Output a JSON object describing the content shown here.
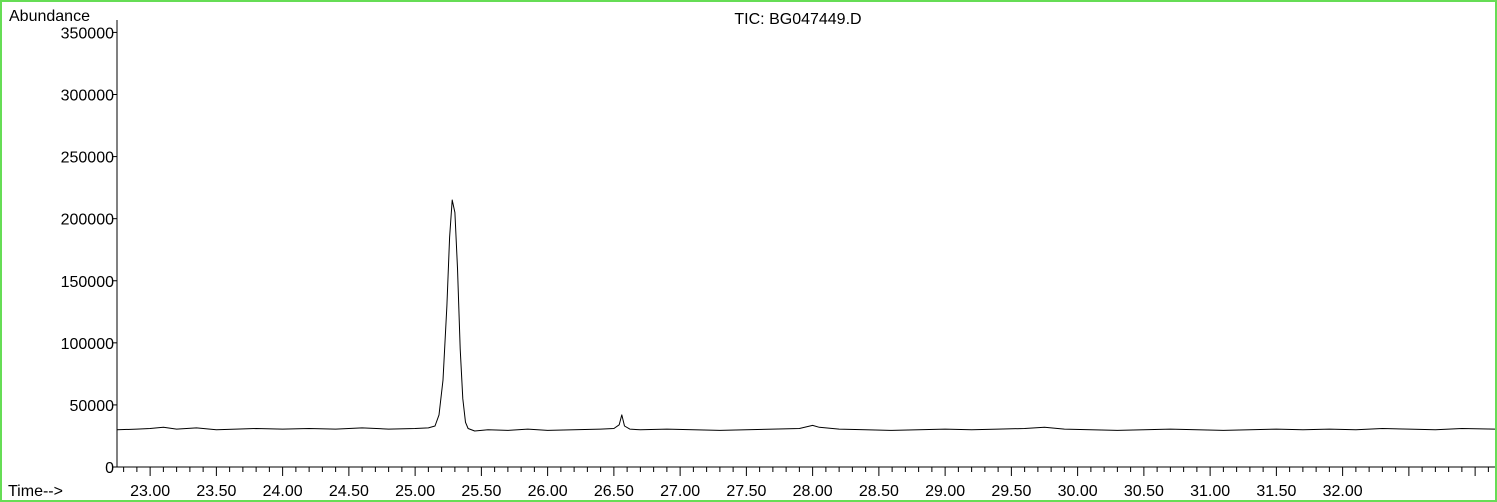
{
  "chart_data": {
    "type": "line",
    "title": "TIC: BG047449.D",
    "ylabel": "Abundance",
    "xlabel": "Time-->",
    "xlim": [
      22.75,
      33.15
    ],
    "ylim": [
      0,
      360000
    ],
    "grid": false,
    "yticks": [
      {
        "value": 0,
        "label": "0"
      },
      {
        "value": 50000,
        "label": "50000"
      },
      {
        "value": 100000,
        "label": "100000"
      },
      {
        "value": 150000,
        "label": "150000"
      },
      {
        "value": 200000,
        "label": "200000"
      },
      {
        "value": 250000,
        "label": "250000"
      },
      {
        "value": 300000,
        "label": "300000"
      },
      {
        "value": 350000,
        "label": "350000"
      }
    ],
    "xticks": [
      {
        "value": 23.0,
        "label": "23.00"
      },
      {
        "value": 23.5,
        "label": "23.50"
      },
      {
        "value": 24.0,
        "label": "24.00"
      },
      {
        "value": 24.5,
        "label": "24.50"
      },
      {
        "value": 25.0,
        "label": "25.00"
      },
      {
        "value": 25.5,
        "label": "25.50"
      },
      {
        "value": 26.0,
        "label": "26.00"
      },
      {
        "value": 26.5,
        "label": "26.50"
      },
      {
        "value": 27.0,
        "label": "27.00"
      },
      {
        "value": 27.5,
        "label": "27.50"
      },
      {
        "value": 28.0,
        "label": "28.00"
      },
      {
        "value": 28.5,
        "label": "28.50"
      },
      {
        "value": 29.0,
        "label": "29.00"
      },
      {
        "value": 29.5,
        "label": "29.50"
      },
      {
        "value": 30.0,
        "label": "30.00"
      },
      {
        "value": 30.5,
        "label": "30.50"
      },
      {
        "value": 31.0,
        "label": "31.00"
      },
      {
        "value": 31.5,
        "label": "31.50"
      },
      {
        "value": 32.0,
        "label": "32.00"
      }
    ],
    "minor_tick_step": 0.1,
    "series": [
      {
        "color": "#000000",
        "x": [
          22.75,
          22.9,
          23.0,
          23.1,
          23.2,
          23.35,
          23.5,
          23.65,
          23.8,
          24.0,
          24.2,
          24.4,
          24.6,
          24.8,
          25.0,
          25.1,
          25.15,
          25.18,
          25.21,
          25.24,
          25.26,
          25.28,
          25.3,
          25.32,
          25.34,
          25.36,
          25.38,
          25.4,
          25.45,
          25.55,
          25.7,
          25.85,
          26.0,
          26.2,
          26.4,
          26.5,
          26.54,
          26.56,
          26.58,
          26.62,
          26.7,
          26.9,
          27.1,
          27.3,
          27.5,
          27.7,
          27.9,
          28.0,
          28.05,
          28.2,
          28.4,
          28.6,
          28.8,
          29.0,
          29.2,
          29.4,
          29.6,
          29.75,
          29.9,
          30.1,
          30.3,
          30.5,
          30.7,
          30.9,
          31.1,
          31.3,
          31.5,
          31.7,
          31.9,
          32.1,
          32.3,
          32.5,
          32.7,
          32.9,
          33.15
        ],
        "y": [
          30000,
          30500,
          31000,
          32000,
          30500,
          31500,
          30000,
          30500,
          31000,
          30500,
          31000,
          30500,
          31500,
          30500,
          31000,
          31500,
          33000,
          42000,
          70000,
          130000,
          185000,
          215000,
          205000,
          160000,
          95000,
          55000,
          36000,
          31000,
          29000,
          30000,
          29500,
          30500,
          29500,
          30000,
          30500,
          31000,
          34000,
          42000,
          33000,
          30500,
          30000,
          30500,
          30000,
          29500,
          30000,
          30500,
          31000,
          33500,
          32000,
          30500,
          30000,
          29500,
          30000,
          30500,
          30000,
          30500,
          31000,
          32000,
          30500,
          30000,
          29500,
          30000,
          30500,
          30000,
          29500,
          30000,
          30500,
          30000,
          30500,
          30000,
          31000,
          30500,
          30000,
          31000,
          30500
        ]
      }
    ]
  }
}
